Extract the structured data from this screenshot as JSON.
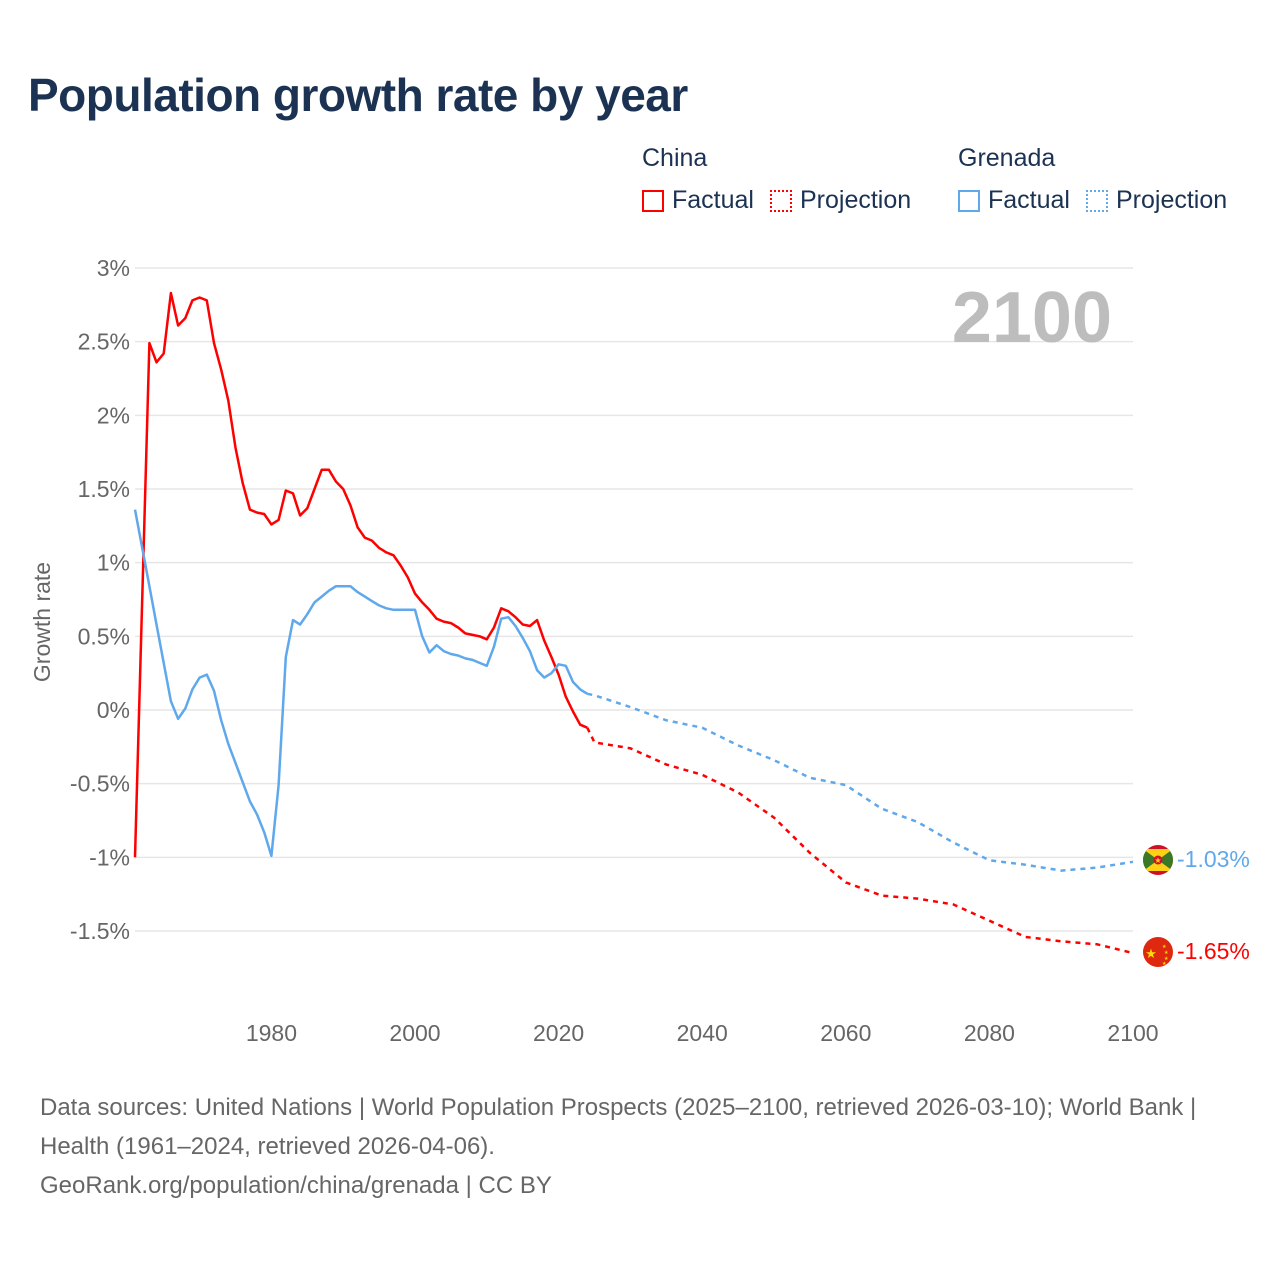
{
  "title": "Population growth rate by year",
  "legend": {
    "groups": [
      {
        "name": "China",
        "color": "#ff0000",
        "factual": "Factual",
        "projection": "Projection"
      },
      {
        "name": "Grenada",
        "color": "#5fa8ec",
        "factual": "Factual",
        "projection": "Projection"
      }
    ]
  },
  "year_overlay": "2100",
  "footer": {
    "sources": "Data sources: United Nations | World Population Prospects (2025–2100, retrieved 2026-03-10); World Bank | Health (1961–2024, retrieved 2026-04-06).",
    "credit": "GeoRank.org/population/china/grenada | CC BY"
  },
  "chart_data": {
    "type": "line",
    "title": "Population growth rate by year",
    "xlabel": "",
    "ylabel": "Growth rate",
    "xlim": [
      1961,
      2100
    ],
    "ylim": [
      -1.5,
      3
    ],
    "x_ticks": [
      "1980",
      "2000",
      "2020",
      "2040",
      "2060",
      "2080",
      "2100"
    ],
    "y_ticks": [
      "3%",
      "2.5%",
      "2%",
      "1.5%",
      "1%",
      "0.5%",
      "0%",
      "-0.5%",
      "-1%",
      "-1.5%"
    ],
    "grid": true,
    "legend_position": "top-right",
    "series": [
      {
        "name": "China",
        "kind": "Factual",
        "color": "#ff0000",
        "x": [
          1961,
          1962,
          1963,
          1964,
          1965,
          1966,
          1967,
          1968,
          1969,
          1970,
          1971,
          1972,
          1973,
          1974,
          1975,
          1976,
          1977,
          1978,
          1979,
          1980,
          1981,
          1982,
          1983,
          1984,
          1985,
          1986,
          1987,
          1988,
          1989,
          1990,
          1991,
          1992,
          1993,
          1994,
          1995,
          1996,
          1997,
          1998,
          1999,
          2000,
          2001,
          2002,
          2003,
          2004,
          2005,
          2006,
          2007,
          2008,
          2009,
          2010,
          2011,
          2012,
          2013,
          2014,
          2015,
          2016,
          2017,
          2018,
          2019,
          2020,
          2021,
          2022,
          2023,
          2024
        ],
        "y": [
          -1.0,
          0.75,
          2.49,
          2.36,
          2.42,
          2.83,
          2.61,
          2.66,
          2.78,
          2.8,
          2.78,
          2.49,
          2.31,
          2.1,
          1.78,
          1.54,
          1.36,
          1.34,
          1.33,
          1.26,
          1.29,
          1.49,
          1.47,
          1.32,
          1.37,
          1.5,
          1.63,
          1.63,
          1.55,
          1.5,
          1.39,
          1.24,
          1.17,
          1.15,
          1.1,
          1.07,
          1.05,
          0.98,
          0.9,
          0.79,
          0.73,
          0.68,
          0.62,
          0.6,
          0.59,
          0.56,
          0.52,
          0.51,
          0.5,
          0.48,
          0.56,
          0.69,
          0.67,
          0.63,
          0.58,
          0.57,
          0.61,
          0.47,
          0.36,
          0.24,
          0.09,
          -0.01,
          -0.1,
          -0.12
        ]
      },
      {
        "name": "China",
        "kind": "Projection",
        "color": "#ff0000",
        "x": [
          2024,
          2025,
          2030,
          2035,
          2040,
          2045,
          2050,
          2055,
          2060,
          2065,
          2070,
          2075,
          2080,
          2085,
          2090,
          2095,
          2100
        ],
        "y": [
          -0.12,
          -0.22,
          -0.26,
          -0.37,
          -0.44,
          -0.56,
          -0.73,
          -0.97,
          -1.17,
          -1.26,
          -1.28,
          -1.32,
          -1.43,
          -1.54,
          -1.57,
          -1.59,
          -1.65
        ]
      },
      {
        "name": "Grenada",
        "kind": "Factual",
        "color": "#5fa8ec",
        "x": [
          1961,
          1962,
          1963,
          1964,
          1965,
          1966,
          1967,
          1968,
          1969,
          1970,
          1971,
          1972,
          1973,
          1974,
          1975,
          1976,
          1977,
          1978,
          1979,
          1980,
          1981,
          1982,
          1983,
          1984,
          1985,
          1986,
          1987,
          1988,
          1989,
          1990,
          1991,
          1992,
          1993,
          1994,
          1995,
          1996,
          1997,
          1998,
          1999,
          2000,
          2001,
          2002,
          2003,
          2004,
          2005,
          2006,
          2007,
          2008,
          2009,
          2010,
          2011,
          2012,
          2013,
          2014,
          2015,
          2016,
          2017,
          2018,
          2019,
          2020,
          2021,
          2022,
          2023,
          2024
        ],
        "y": [
          1.36,
          1.1,
          0.84,
          0.58,
          0.32,
          0.06,
          -0.06,
          0.01,
          0.14,
          0.22,
          0.24,
          0.13,
          -0.07,
          -0.23,
          -0.36,
          -0.49,
          -0.62,
          -0.71,
          -0.83,
          -0.99,
          -0.51,
          0.36,
          0.61,
          0.58,
          0.65,
          0.73,
          0.77,
          0.81,
          0.84,
          0.84,
          0.84,
          0.8,
          0.77,
          0.74,
          0.71,
          0.69,
          0.68,
          0.68,
          0.68,
          0.68,
          0.5,
          0.39,
          0.44,
          0.4,
          0.38,
          0.37,
          0.35,
          0.34,
          0.32,
          0.3,
          0.43,
          0.62,
          0.63,
          0.57,
          0.49,
          0.4,
          0.27,
          0.22,
          0.25,
          0.31,
          0.3,
          0.19,
          0.14,
          0.11
        ]
      },
      {
        "name": "Grenada",
        "kind": "Projection",
        "color": "#5fa8ec",
        "x": [
          2024,
          2025,
          2030,
          2035,
          2040,
          2045,
          2050,
          2055,
          2060,
          2065,
          2070,
          2075,
          2080,
          2085,
          2090,
          2095,
          2100
        ],
        "y": [
          0.11,
          0.1,
          0.02,
          -0.07,
          -0.12,
          -0.24,
          -0.34,
          -0.46,
          -0.51,
          -0.67,
          -0.76,
          -0.9,
          -1.02,
          -1.05,
          -1.09,
          -1.07,
          -1.03
        ]
      }
    ],
    "end_labels": [
      {
        "country": "Grenada",
        "value": "-1.03%",
        "y": -1.03,
        "color": "#5fa8ec",
        "icon": "grenada-flag-icon"
      },
      {
        "country": "China",
        "value": "-1.65%",
        "y": -1.65,
        "color": "#ff0000",
        "icon": "china-flag-icon"
      }
    ]
  }
}
